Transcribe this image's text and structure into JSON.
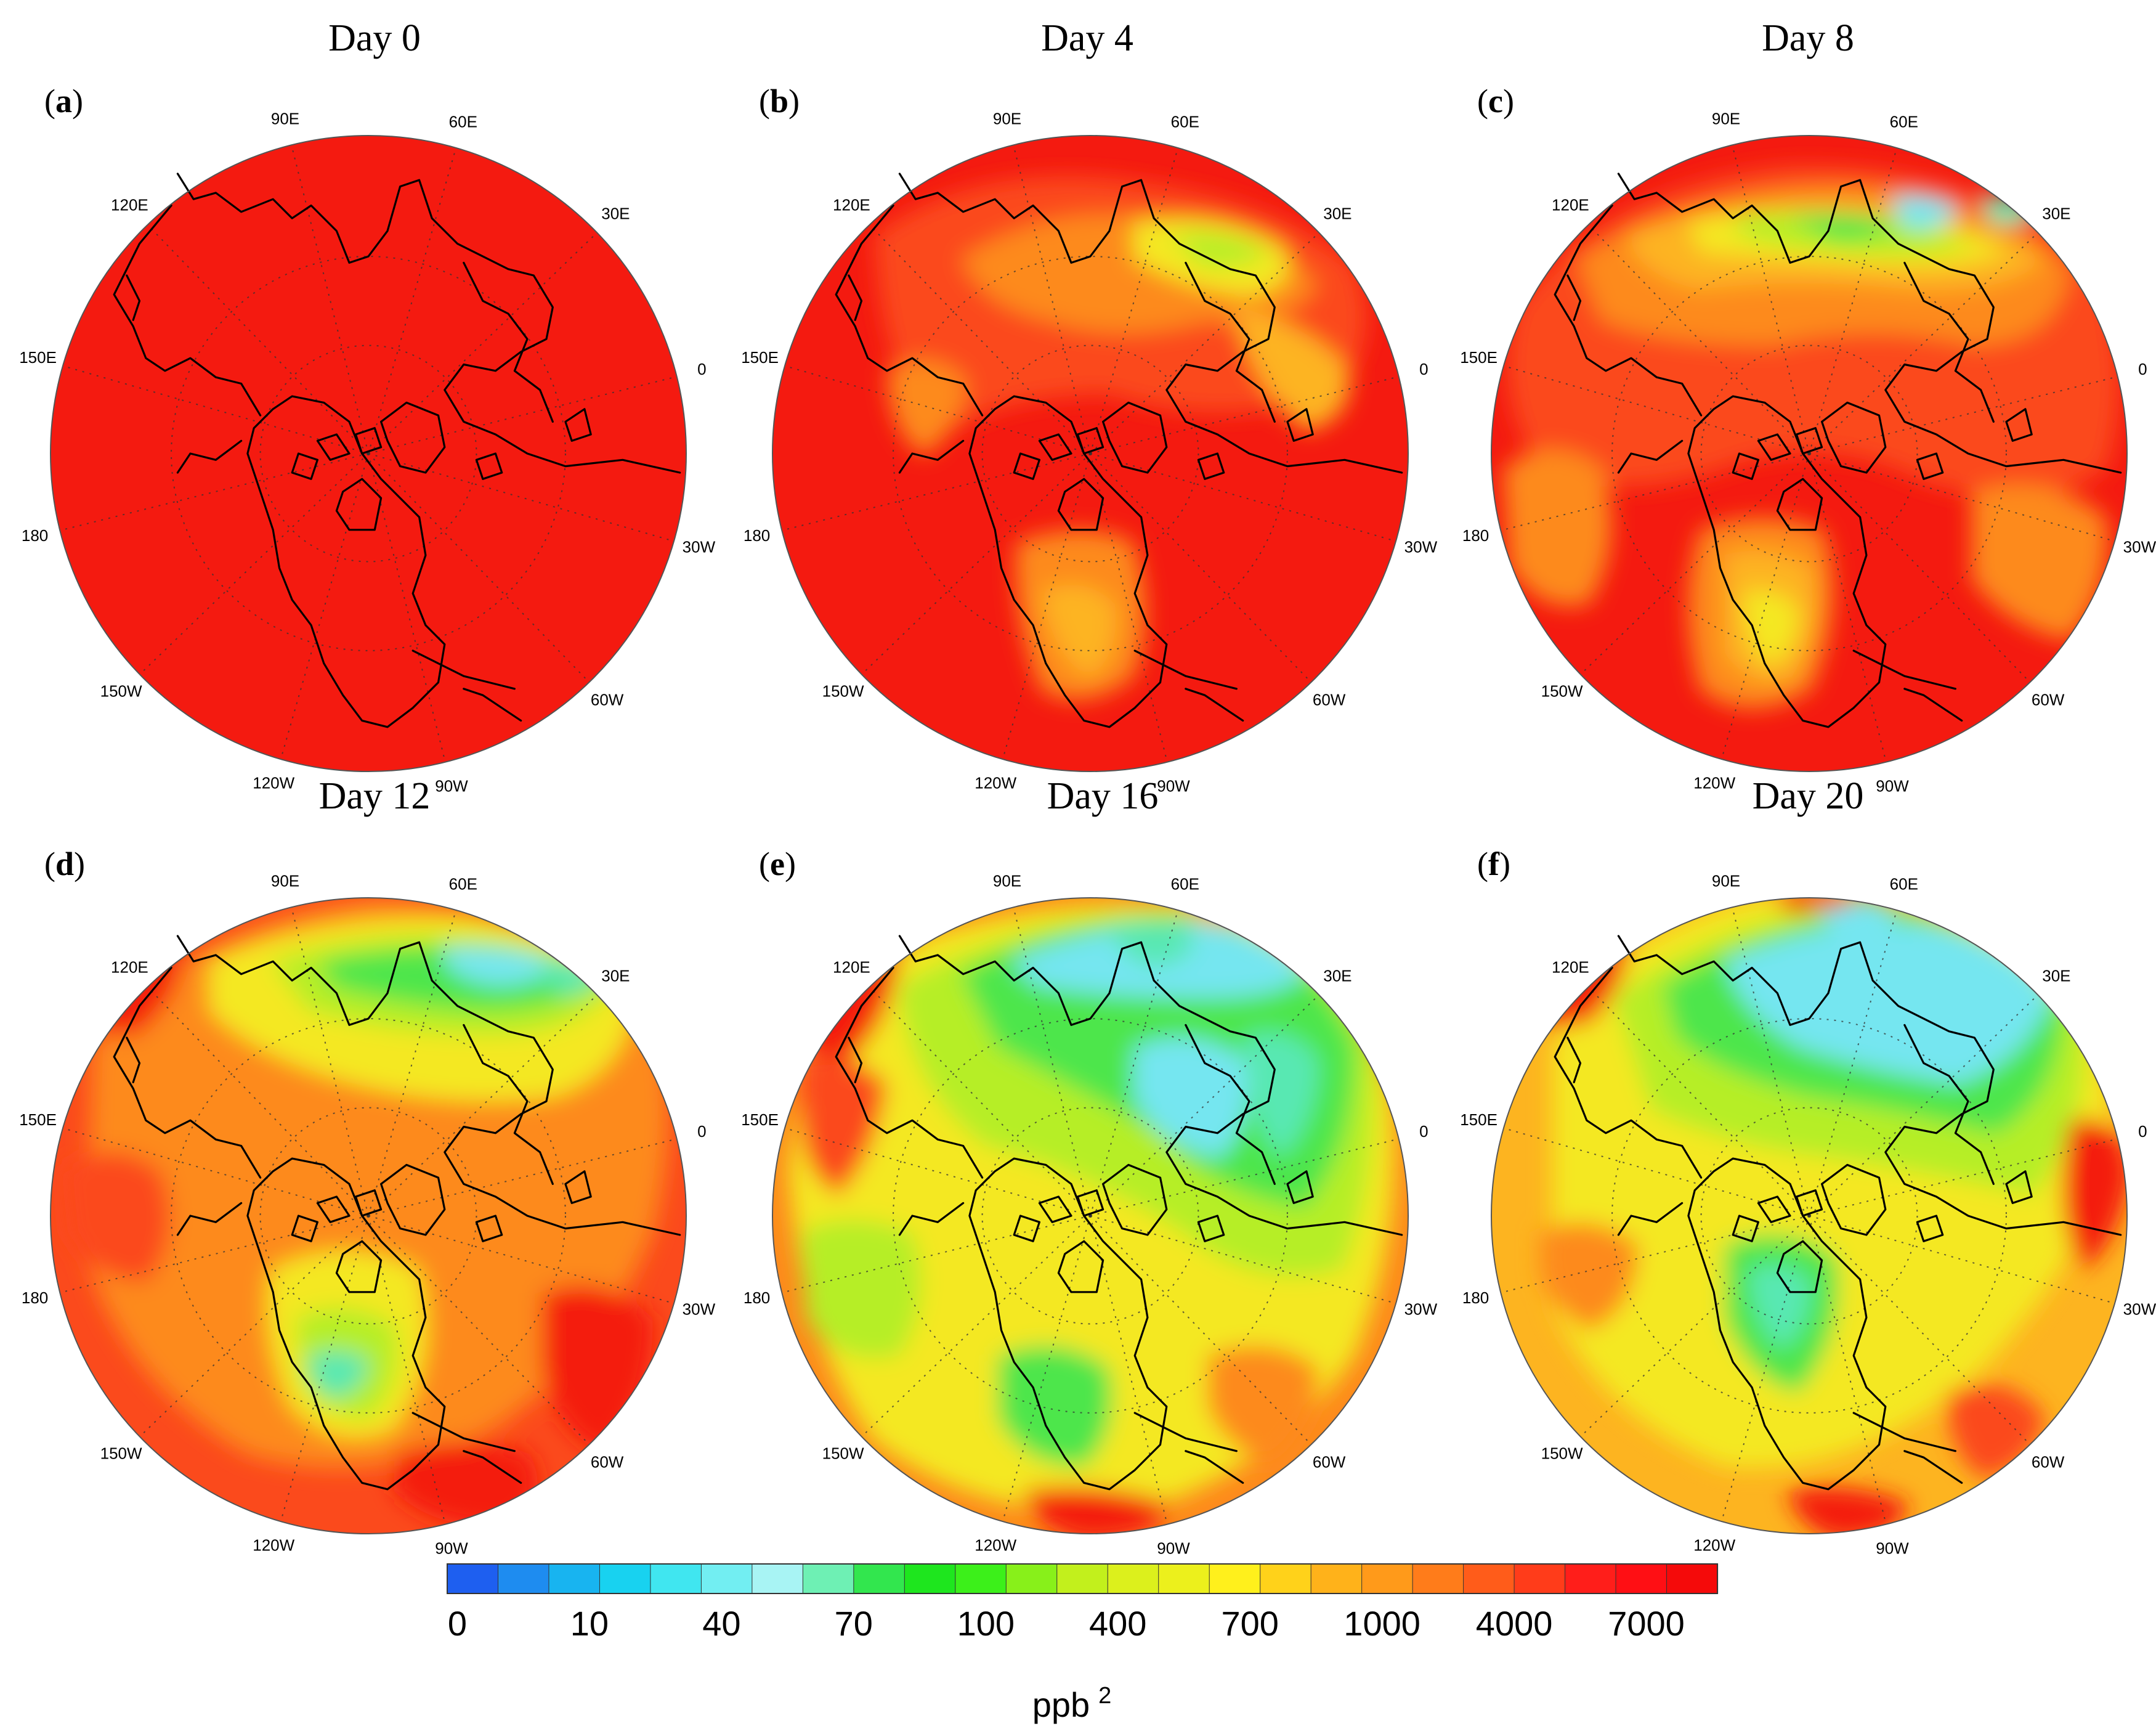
{
  "panels": [
    {
      "label": "a",
      "title": "Day 0"
    },
    {
      "label": "b",
      "title": "Day 4"
    },
    {
      "label": "c",
      "title": "Day 8"
    },
    {
      "label": "d",
      "title": "Day 12"
    },
    {
      "label": "e",
      "title": "Day 16"
    },
    {
      "label": "f",
      "title": "Day 20"
    }
  ],
  "longitude_labels": [
    "90E",
    "60E",
    "30E",
    "0",
    "30W",
    "60W",
    "90W",
    "120W",
    "150W",
    "180",
    "150E",
    "120E"
  ],
  "colorbar": {
    "tick_labels": [
      "0",
      "10",
      "40",
      "70",
      "100",
      "400",
      "700",
      "1000",
      "4000",
      "7000"
    ],
    "unit": "ppb",
    "unit_superscript": "2",
    "colors": [
      "#1e5ff0",
      "#1e8cf0",
      "#18b4f0",
      "#18d2f0",
      "#40e6f0",
      "#72eef2",
      "#a8f4f4",
      "#6ef0b4",
      "#32e64e",
      "#1ee61e",
      "#3cf01a",
      "#88f01a",
      "#c2f01c",
      "#dcf01c",
      "#ecf01c",
      "#fff01c",
      "#ffd21a",
      "#ffb21a",
      "#ff9a1a",
      "#ff7c1a",
      "#ff5c1a",
      "#ff3c1a",
      "#ff1e1a",
      "#ff0f14",
      "#f50a0a"
    ]
  },
  "field_palette": {
    "red": "#f41a10",
    "red_orange": "#fb4a1c",
    "orange": "#fd8a1c",
    "yellow_orange": "#fdb420",
    "yellow": "#f4e820",
    "yellow_green": "#b6ee26",
    "green": "#4ee64c",
    "teal": "#58e8b2",
    "cyan": "#74e6f0"
  }
}
